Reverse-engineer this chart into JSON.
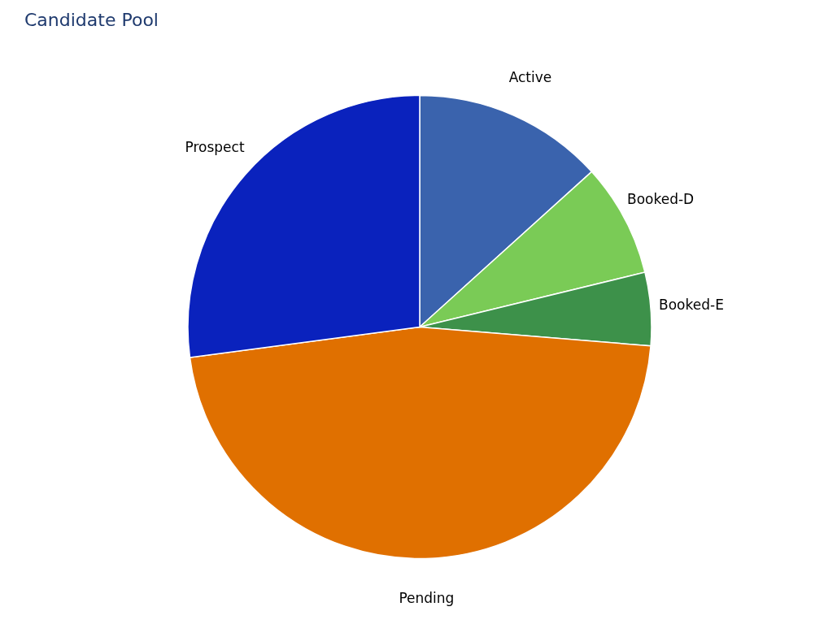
{
  "chart_data": {
    "type": "pie",
    "title": "Candidate Pool",
    "categories": [
      "Active",
      "Booked-D",
      "Booked-E",
      "Pending",
      "Prospect"
    ],
    "values": [
      13.3,
      7.9,
      5.1,
      46.6,
      27.1
    ],
    "colors": [
      "#3a63ad",
      "#7acb56",
      "#3d914a",
      "#e07000",
      "#0a22bd"
    ],
    "legend": false
  }
}
